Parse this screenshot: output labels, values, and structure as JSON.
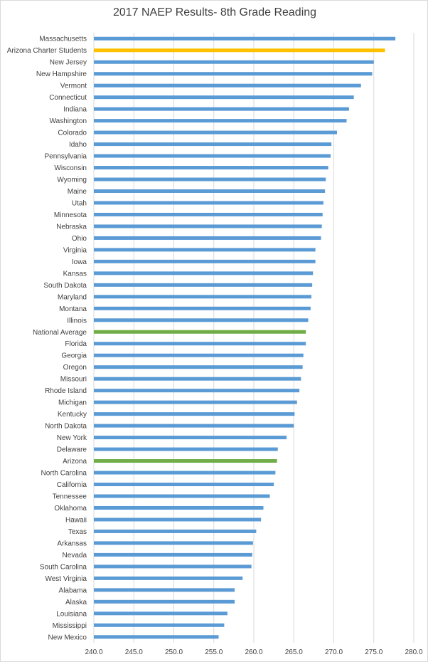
{
  "chart_data": {
    "type": "bar",
    "orientation": "horizontal",
    "title": "2017 NAEP Results- 8th Grade Reading",
    "xlabel": "",
    "ylabel": "",
    "xlim": [
      240,
      280
    ],
    "x_ticks": [
      "240.0",
      "245.0",
      "250.0",
      "255.0",
      "260.0",
      "265.0",
      "270.0",
      "275.0",
      "280.0"
    ],
    "grid": true,
    "legend": "none",
    "colors": {
      "default": "#5b9bd5",
      "highlight_charter": "#ffc000",
      "highlight_state": "#70ad47"
    },
    "categories": [
      "Massachusetts",
      "Arizona Charter Students",
      "New Jersey",
      "New Hampshire",
      "Vermont",
      "Connecticut",
      "Indiana",
      "Washington",
      "Colorado",
      "Idaho",
      "Pennsylvania",
      "Wisconsin",
      "Wyoming",
      "Maine",
      "Utah",
      "Minnesota",
      "Nebraska",
      "Ohio",
      "Virginia",
      "Iowa",
      "Kansas",
      "South Dakota",
      "Maryland",
      "Montana",
      "Illinois",
      "National Average",
      "Florida",
      "Georgia",
      "Oregon",
      "Missouri",
      "Rhode Island",
      "Michigan",
      "Kentucky",
      "North Dakota",
      "New York",
      "Delaware",
      "Arizona",
      "North Carolina",
      "California",
      "Tennessee",
      "Oklahoma",
      "Hawaii",
      "Texas",
      "Arkansas",
      "Nevada",
      "South Carolina",
      "West Virginia",
      "Alabama",
      "Alaska",
      "Louisiana",
      "Mississippi",
      "New Mexico"
    ],
    "values": [
      277.7,
      276.4,
      275.0,
      274.8,
      273.4,
      272.5,
      271.9,
      271.6,
      270.4,
      269.7,
      269.6,
      269.3,
      269.0,
      268.9,
      268.7,
      268.6,
      268.5,
      268.4,
      267.7,
      267.7,
      267.4,
      267.3,
      267.2,
      267.1,
      266.8,
      266.5,
      266.5,
      266.2,
      266.1,
      265.9,
      265.7,
      265.4,
      265.1,
      265.0,
      264.1,
      263.0,
      262.9,
      262.7,
      262.5,
      262.0,
      261.2,
      260.9,
      260.3,
      259.9,
      259.8,
      259.7,
      258.6,
      257.6,
      257.6,
      256.7,
      256.3,
      255.6
    ],
    "highlights": {
      "Arizona Charter Students": "highlight_charter",
      "National Average": "highlight_state",
      "Arizona": "highlight_state"
    }
  }
}
